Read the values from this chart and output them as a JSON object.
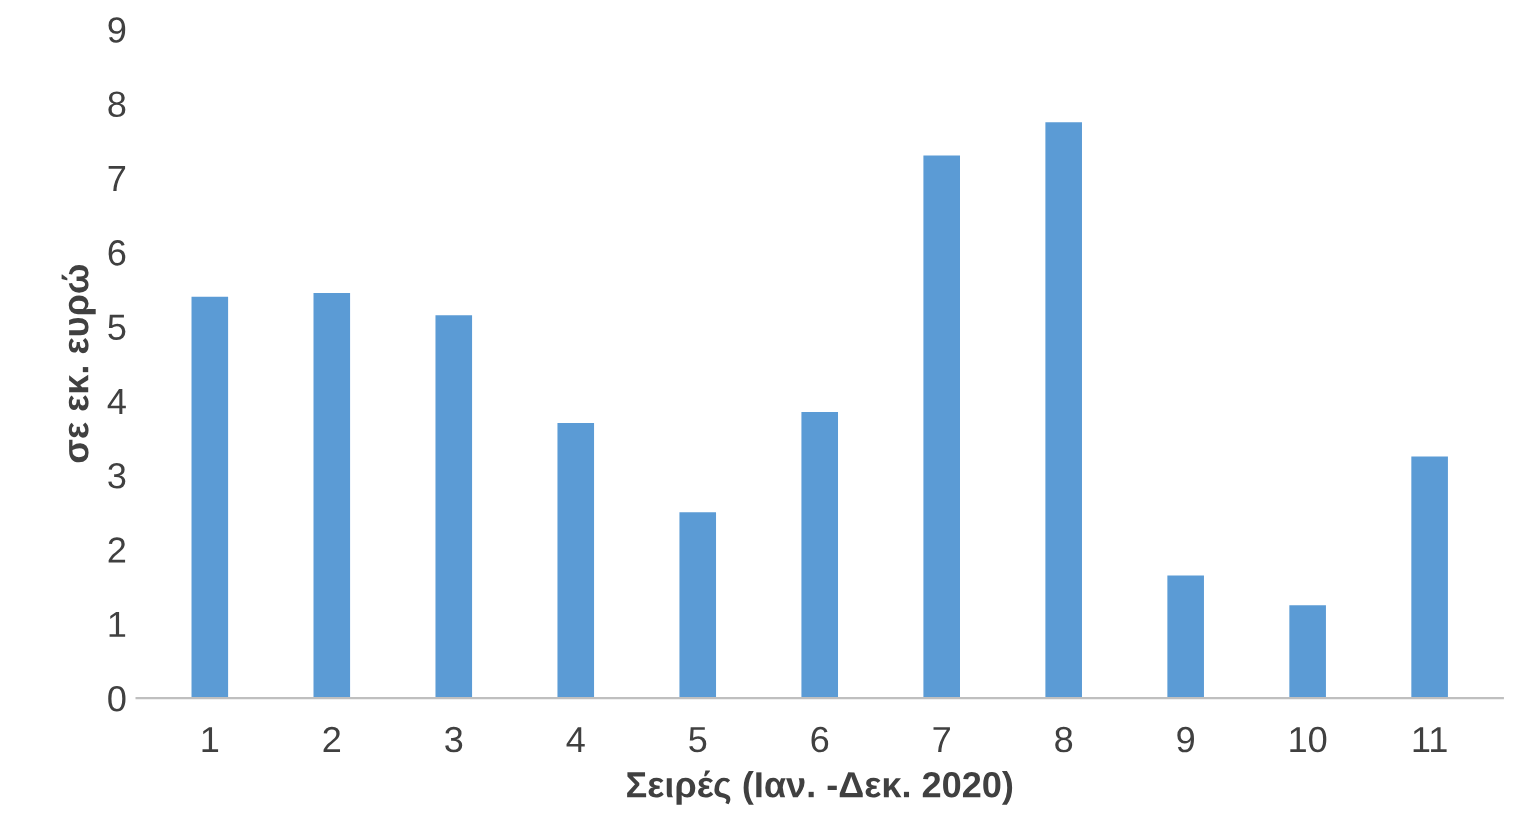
{
  "chart_data": {
    "type": "bar",
    "xlabel": "Σειρές (Ιαν. -Δεκ. 2020)",
    "ylabel": "σε εκ. ευρώ",
    "categories": [
      "1",
      "2",
      "3",
      "4",
      "5",
      "6",
      "7",
      "8",
      "9",
      "10",
      "11"
    ],
    "values": [
      5.4,
      5.45,
      5.15,
      3.7,
      2.5,
      3.85,
      7.3,
      7.75,
      1.65,
      1.25,
      3.25
    ],
    "color": "#5b9bd5",
    "ylim": [
      0,
      9
    ],
    "yticks": [
      0,
      1,
      2,
      3,
      4,
      5,
      6,
      7,
      8,
      9
    ],
    "grid": false
  }
}
